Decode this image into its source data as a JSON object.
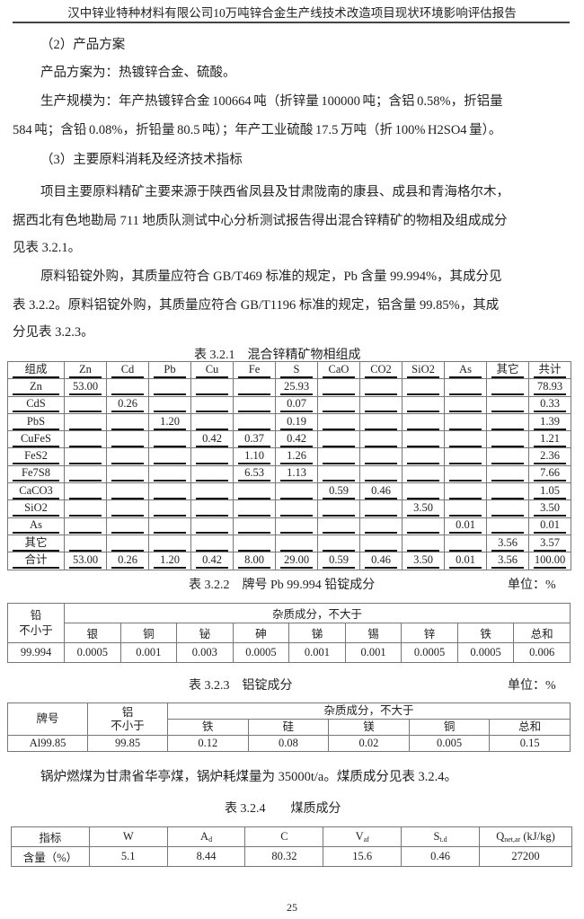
{
  "header": {
    "title": "汉中锌业特种材料有限公司10万吨锌合金生产线技术改造项目现状环境影响评估报告"
  },
  "body": {
    "section2_heading": "（2）产品方案",
    "product_line": "产品方案为：热镀锌合金、硫酸。",
    "scale_line1": "生产规模为：年产热镀锌合金 100664 吨（折锌量 100000 吨；含铝 0.58%，折铝量",
    "scale_line2": "584 吨；含铅 0.08%，折铅量 80.5 吨）；年产工业硫酸 17.5 万吨（折 100% H2SO4 量）。",
    "section3_heading": "（3）主要原料消耗及经济技术指标",
    "para1_line1": "项目主要原料精矿主要来源于陕西省凤县及甘肃陇南的康县、成县和青海格尔木，",
    "para1_line2": "据西北有色地勘局 711 地质队测试中心分析测试报告得出混合锌精矿的物相及组成成分",
    "para1_line3": "见表 3.2.1。",
    "para2_line1": "原料铅锭外购，其质量应符合 GB/T469 标准的规定，Pb 含量 99.994%，其成分见",
    "para2_line2": "表 3.2.2。原料铝锭外购，其质量应符合 GB/T1196 标准的规定，铝含量 99.85%，其成",
    "para2_line3": "分见表 3.2.3。",
    "coal_line": "锅炉燃煤为甘肃省华亭煤，锅炉耗煤量为 35000t/a。煤质成分见表 3.2.4。"
  },
  "table1": {
    "caption": "表 3.2.1    混合锌精矿物相组成",
    "headers": [
      "组成",
      "Zn",
      "Cd",
      "Pb",
      "Cu",
      "Fe",
      "S",
      "CaO",
      "CO2",
      "SiO2",
      "As",
      "其它",
      "共计"
    ],
    "rows": [
      [
        "Zn",
        "53.00",
        "",
        "",
        "",
        "",
        "25.93",
        "",
        "",
        "",
        "",
        "",
        "78.93"
      ],
      [
        "CdS",
        "",
        "0.26",
        "",
        "",
        "",
        "0.07",
        "",
        "",
        "",
        "",
        "",
        "0.33"
      ],
      [
        "PbS",
        "",
        "",
        "1.20",
        "",
        "",
        "0.19",
        "",
        "",
        "",
        "",
        "",
        "1.39"
      ],
      [
        "CuFeS",
        "",
        "",
        "",
        "0.42",
        "0.37",
        "0.42",
        "",
        "",
        "",
        "",
        "",
        "1.21"
      ],
      [
        "FeS2",
        "",
        "",
        "",
        "",
        "1.10",
        "1.26",
        "",
        "",
        "",
        "",
        "",
        "2.36"
      ],
      [
        "Fe7S8",
        "",
        "",
        "",
        "",
        "6.53",
        "1.13",
        "",
        "",
        "",
        "",
        "",
        "7.66"
      ],
      [
        "CaCO3",
        "",
        "",
        "",
        "",
        "",
        "",
        "0.59",
        "0.46",
        "",
        "",
        "",
        "1.05"
      ],
      [
        "SiO2",
        "",
        "",
        "",
        "",
        "",
        "",
        "",
        "",
        "3.50",
        "",
        "",
        "3.50"
      ],
      [
        "As",
        "",
        "",
        "",
        "",
        "",
        "",
        "",
        "",
        "",
        "0.01",
        "",
        "0.01"
      ],
      [
        "其它",
        "",
        "",
        "",
        "",
        "",
        "",
        "",
        "",
        "",
        "",
        "3.56",
        "3.57"
      ],
      [
        "合计",
        "53.00",
        "0.26",
        "1.20",
        "0.42",
        "8.00",
        "29.00",
        "0.59",
        "0.46",
        "3.50",
        "0.01",
        "3.56",
        "100.00"
      ]
    ]
  },
  "table2": {
    "caption": "表 3.2.2    牌号 Pb 99.994 铅锭成分",
    "unit": "单位：%",
    "lead_header": "铅",
    "lead_subheader": "不小于",
    "impurity_header": "杂质成分，不大于",
    "impurities": [
      "银",
      "铜",
      "铋",
      "砷",
      "锑",
      "锡",
      "锌",
      "铁",
      "总和"
    ],
    "values": [
      "99.994",
      "0.0005",
      "0.001",
      "0.003",
      "0.0005",
      "0.001",
      "0.001",
      "0.0005",
      "0.0005",
      "0.006"
    ]
  },
  "table3": {
    "caption": "表 3.2.3    铝锭成分",
    "unit": "单位：%",
    "grade_header": "牌号",
    "al_header": "铝",
    "al_subheader": "不小于",
    "impurity_header": "杂质成分，不大于",
    "impurities": [
      "铁",
      "硅",
      "镁",
      "铜",
      "总和"
    ],
    "values": [
      "Al99.85",
      "99.85",
      "0.12",
      "0.08",
      "0.02",
      "0.005",
      "0.15"
    ]
  },
  "table4": {
    "caption": "表 3.2.4        煤质成分",
    "headers": [
      {
        "main": "指标",
        "sub": ""
      },
      {
        "main": "W",
        "sub": ""
      },
      {
        "main": "A",
        "sub": "d"
      },
      {
        "main": "C",
        "sub": ""
      },
      {
        "main": "V",
        "sub": "af"
      },
      {
        "main": "S",
        "sub": "t.d"
      },
      {
        "main": "Q",
        "sub": "net,ar",
        "suffix": " (kJ/kg)"
      }
    ],
    "values": [
      "含量（%）",
      "5.1",
      "8.44",
      "80.32",
      "15.6",
      "0.46",
      "27200"
    ]
  },
  "page_number": "25"
}
